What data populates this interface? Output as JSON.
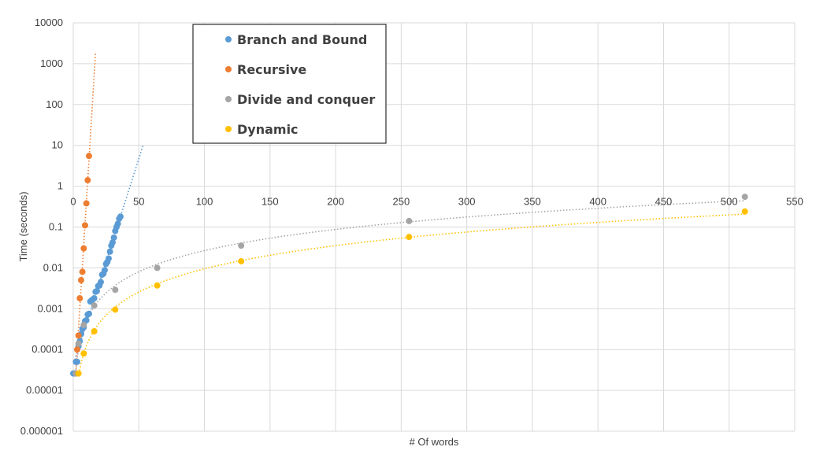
{
  "chart_data": {
    "type": "scatter",
    "xlabel": "# Of words",
    "ylabel": "Time (seconds)",
    "xlim": [
      0,
      550
    ],
    "ylim": [
      1e-06,
      10000
    ],
    "yscale": "log",
    "grid": true,
    "legend_position": "top-left",
    "x_ticks": [
      "0",
      "50",
      "100",
      "150",
      "200",
      "250",
      "300",
      "350",
      "400",
      "450",
      "500",
      "550"
    ],
    "y_ticks": [
      "0.000001",
      "0.00001",
      "0.0001",
      "0.001",
      "0.01",
      "0.1",
      "1",
      "10",
      "100",
      "1000",
      "10000"
    ],
    "series": [
      {
        "name": "Branch and Bound",
        "color": "#5B9BD5",
        "trendline": "exponential",
        "points": [
          [
            0,
            2.6e-05
          ],
          [
            1,
            2.6e-05
          ],
          [
            2,
            5e-05
          ],
          [
            3,
            5e-05
          ],
          [
            4,
            0.00012
          ],
          [
            5,
            0.00016
          ],
          [
            6,
            0.00024
          ],
          [
            7,
            0.00032
          ],
          [
            8,
            0.00035
          ],
          [
            9,
            0.0005
          ],
          [
            10,
            0.00052
          ],
          [
            11,
            0.00072
          ],
          [
            12,
            0.00075
          ],
          [
            13,
            0.0015
          ],
          [
            14,
            0.0016
          ],
          [
            15,
            0.0017
          ],
          [
            16,
            0.0018
          ],
          [
            17,
            0.0026
          ],
          [
            18,
            0.0027
          ],
          [
            19,
            0.0036
          ],
          [
            20,
            0.0037
          ],
          [
            21,
            0.0045
          ],
          [
            22,
            0.0068
          ],
          [
            23,
            0.0072
          ],
          [
            24,
            0.0088
          ],
          [
            25,
            0.0125
          ],
          [
            26,
            0.014
          ],
          [
            27,
            0.017
          ],
          [
            28,
            0.025
          ],
          [
            29,
            0.035
          ],
          [
            30,
            0.042
          ],
          [
            31,
            0.055
          ],
          [
            32,
            0.08
          ],
          [
            33,
            0.1
          ],
          [
            34,
            0.12
          ],
          [
            35,
            0.16
          ],
          [
            36,
            0.18
          ]
        ]
      },
      {
        "name": "Recursive",
        "color": "#ED7D31",
        "trendline": "exponential",
        "points": [
          [
            2,
            2.6e-05
          ],
          [
            3,
            0.0001
          ],
          [
            4,
            0.00022
          ],
          [
            5,
            0.0018
          ],
          [
            6,
            0.005
          ],
          [
            7,
            0.008
          ],
          [
            8,
            0.03
          ],
          [
            9,
            0.11
          ],
          [
            10,
            0.38
          ],
          [
            11,
            1.4
          ],
          [
            12,
            5.5
          ]
        ]
      },
      {
        "name": "Divide and conquer",
        "color": "#A5A5A5",
        "trendline": "power",
        "points": [
          [
            2,
            2.6e-05
          ],
          [
            4,
            0.00014
          ],
          [
            8,
            0.0004
          ],
          [
            16,
            0.0012
          ],
          [
            32,
            0.0029
          ],
          [
            64,
            0.01
          ],
          [
            128,
            0.035
          ],
          [
            256,
            0.14
          ],
          [
            512,
            0.55
          ]
        ]
      },
      {
        "name": "Dynamic",
        "color": "#FFC000",
        "trendline": "power",
        "points": [
          [
            4,
            2.6e-05
          ],
          [
            8,
            8e-05
          ],
          [
            16,
            0.00028
          ],
          [
            32,
            0.00095
          ],
          [
            64,
            0.0037
          ],
          [
            128,
            0.0145
          ],
          [
            256,
            0.057
          ],
          [
            512,
            0.24
          ]
        ]
      }
    ]
  }
}
